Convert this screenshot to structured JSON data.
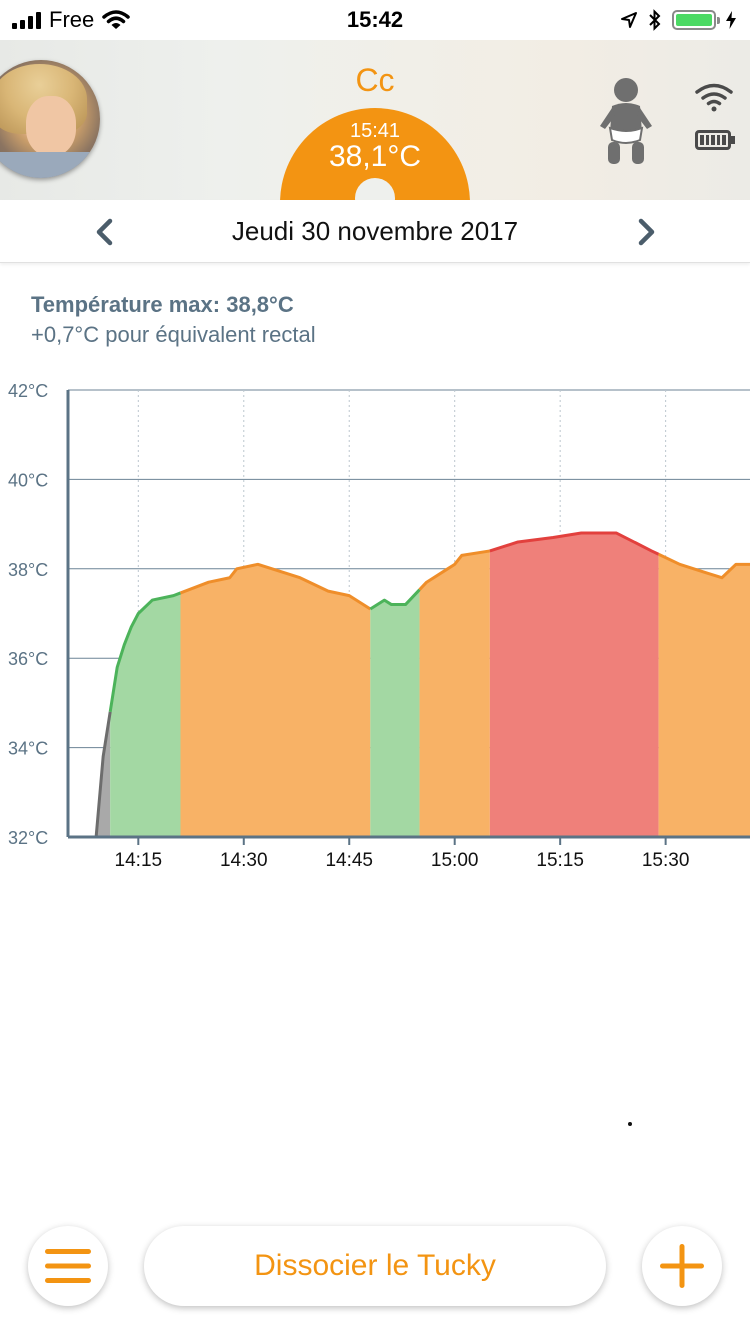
{
  "status_bar": {
    "carrier": "Free",
    "time": "15:42",
    "battery_color": "#4cd964"
  },
  "header": {
    "name": "Cc",
    "last_time": "15:41",
    "last_temp": "38,1°C",
    "accent_color": "#f39412",
    "icons": [
      "baby-icon",
      "wifi-icon",
      "battery-icon"
    ]
  },
  "date_nav": {
    "date": "Jeudi 30 novembre 2017",
    "prev_icon": "chevron-left-icon",
    "next_icon": "chevron-right-icon"
  },
  "stats": {
    "max_temp": "Température max: 38,8°C",
    "rectal_note": "+0,7°C pour équivalent rectal"
  },
  "chart_data": {
    "type": "area",
    "title": "",
    "xlabel": "",
    "ylabel": "",
    "y_ticks": [
      "42°C",
      "40°C",
      "38°C",
      "36°C",
      "34°C",
      "32°C"
    ],
    "ylim": [
      32,
      42
    ],
    "x_ticks": [
      "14:15",
      "14:30",
      "14:45",
      "15:00",
      "15:15",
      "15:30"
    ],
    "x_tick_minutes": [
      855,
      870,
      885,
      900,
      915,
      930
    ],
    "xlim": [
      "14:05",
      "15:42"
    ],
    "grid": true,
    "series": [
      {
        "points": [
          [
            "14:09",
            32.0
          ],
          [
            "14:10",
            33.8
          ],
          [
            "14:11",
            34.8
          ],
          [
            "14:12",
            35.8
          ],
          [
            "14:13",
            36.3
          ],
          [
            "14:14",
            36.7
          ],
          [
            "14:15",
            37.0
          ],
          [
            "14:17",
            37.3
          ],
          [
            "14:20",
            37.4
          ],
          [
            "14:25",
            37.7
          ],
          [
            "14:28",
            37.8
          ],
          [
            "14:29",
            38.0
          ],
          [
            "14:32",
            38.1
          ],
          [
            "14:38",
            37.8
          ],
          [
            "14:42",
            37.5
          ],
          [
            "14:45",
            37.4
          ],
          [
            "14:48",
            37.1
          ],
          [
            "14:50",
            37.3
          ],
          [
            "14:51",
            37.2
          ],
          [
            "14:53",
            37.2
          ],
          [
            "14:56",
            37.7
          ],
          [
            "14:59",
            38.0
          ],
          [
            "15:00",
            38.1
          ],
          [
            "15:01",
            38.3
          ],
          [
            "15:05",
            38.4
          ],
          [
            "15:09",
            38.6
          ],
          [
            "15:14",
            38.7
          ],
          [
            "15:18",
            38.8
          ],
          [
            "15:21",
            38.8
          ],
          [
            "15:23",
            38.8
          ],
          [
            "15:28",
            38.4
          ],
          [
            "15:32",
            38.1
          ],
          [
            "15:36",
            37.9
          ],
          [
            "15:38",
            37.8
          ],
          [
            "15:40",
            38.1
          ],
          [
            "15:42",
            38.1
          ]
        ]
      }
    ],
    "zones": [
      {
        "from": "14:09",
        "to": "14:11",
        "level": "gray",
        "color": "#a9a9a9",
        "line_color": "#6d6d6d"
      },
      {
        "from": "14:11",
        "to": "14:21",
        "level": "green",
        "color": "#a3d8a3",
        "line_color": "#4cb35a"
      },
      {
        "from": "14:21",
        "to": "14:48",
        "level": "orange",
        "color": "#f8b266",
        "line_color": "#ef8e2a"
      },
      {
        "from": "14:48",
        "to": "14:55",
        "level": "green",
        "color": "#a3d8a3",
        "line_color": "#4cb35a"
      },
      {
        "from": "14:55",
        "to": "15:05",
        "level": "orange",
        "color": "#f8b266",
        "line_color": "#ef8e2a"
      },
      {
        "from": "15:05",
        "to": "15:29",
        "level": "red",
        "color": "#ef807a",
        "line_color": "#e2403d"
      },
      {
        "from": "15:29",
        "to": "15:42",
        "level": "orange",
        "color": "#f8b266",
        "line_color": "#ef8e2a"
      }
    ]
  },
  "bottom_bar": {
    "dissociate_label": "Dissocier le Tucky",
    "menu_icon": "menu-icon",
    "add_icon": "plus-icon"
  }
}
